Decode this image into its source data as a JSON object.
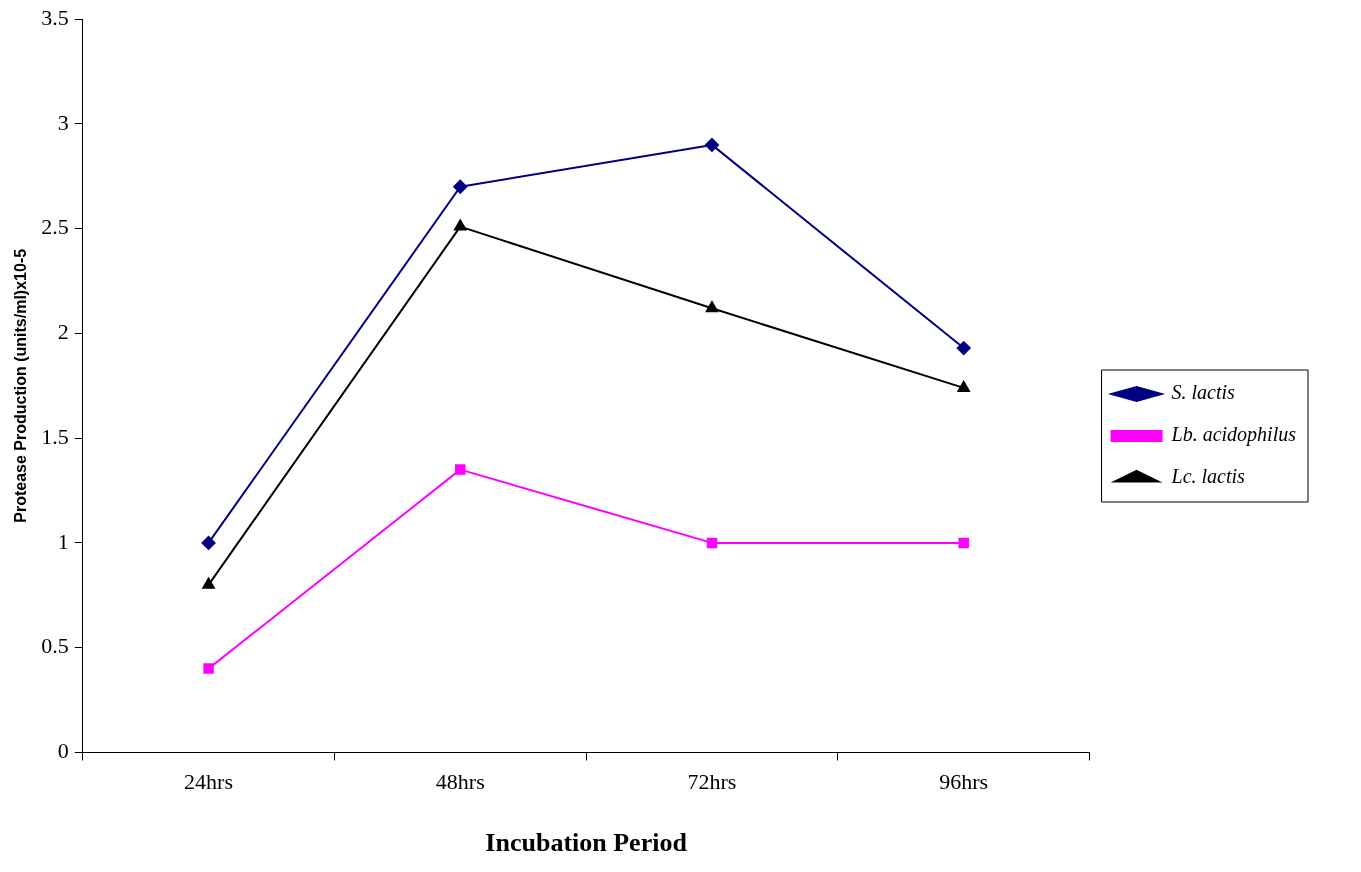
{
  "chart_data": {
    "type": "line",
    "xlabel": "Incubation Period",
    "ylabel": "Protease Production (units/ml)x10-5",
    "categories": [
      "24hrs",
      "48hrs",
      "72hrs",
      "96hrs"
    ],
    "series": [
      {
        "name": "S. lactis",
        "color": "#000080",
        "marker": "diamond",
        "values": [
          1.0,
          2.7,
          2.9,
          1.93
        ]
      },
      {
        "name": "Lb. acidophilus",
        "color": "#ff00ff",
        "marker": "square",
        "values": [
          0.4,
          1.35,
          1.0,
          1.0
        ]
      },
      {
        "name": "Lc. lactis",
        "color": "#000000",
        "marker": "triangle",
        "values": [
          0.8,
          2.51,
          2.12,
          1.74
        ]
      }
    ],
    "ylim": [
      0,
      3.5
    ],
    "yticks": [
      0,
      0.5,
      1,
      1.5,
      2,
      2.5,
      3,
      3.5
    ],
    "grid": false,
    "legend": "right",
    "line_style": "solid"
  }
}
